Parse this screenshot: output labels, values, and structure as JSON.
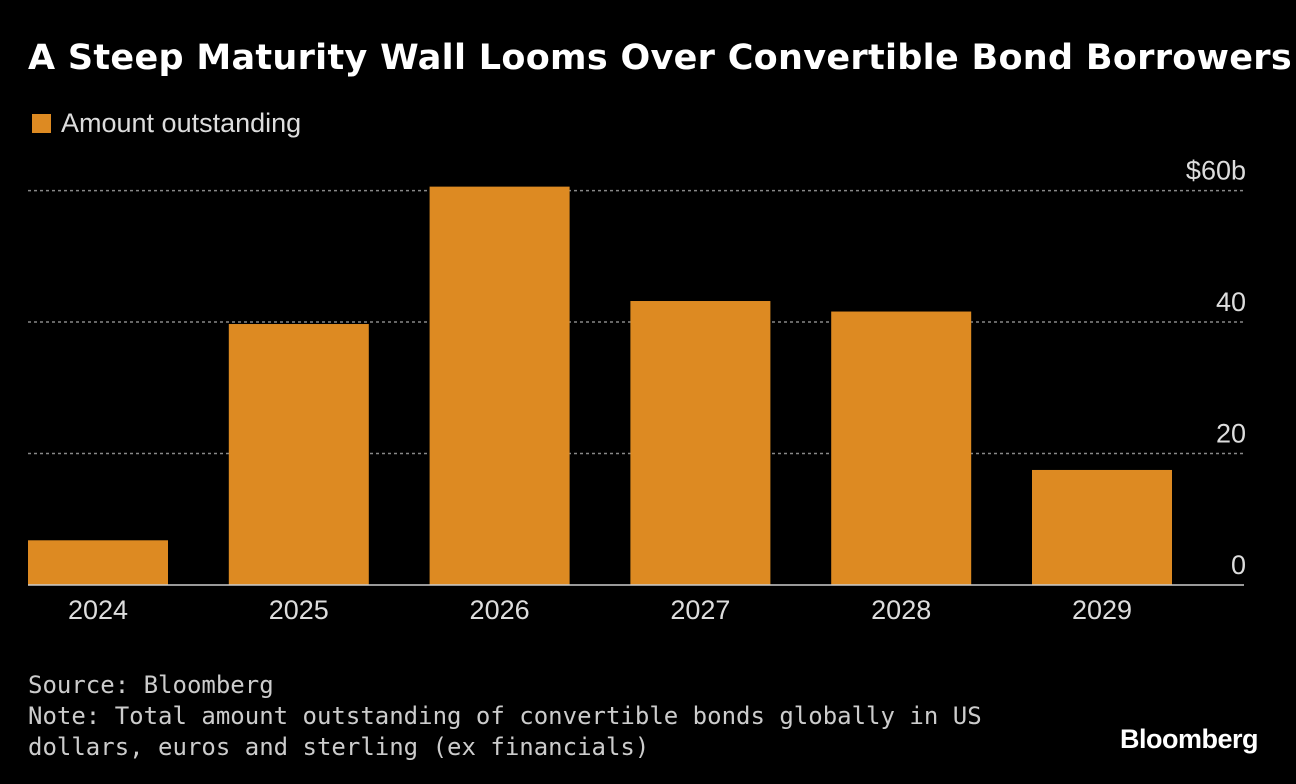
{
  "chart_data": {
    "type": "bar",
    "title": "A Steep Maturity Wall Looms Over Convertible Bond Borrowers",
    "categories": [
      "2024",
      "2025",
      "2026",
      "2027",
      "2028",
      "2029"
    ],
    "series": [
      {
        "name": "Amount outstanding",
        "color": "#dd8a22",
        "values": [
          6.8,
          39.7,
          60.6,
          43.2,
          41.6,
          17.5
        ]
      }
    ],
    "ylim": [
      0,
      61
    ],
    "yticks": [
      0,
      20,
      40,
      {
        "value": 60,
        "label": "$60b"
      }
    ],
    "grid": true,
    "source": "Source: Bloomberg",
    "note": "Note: Total amount outstanding of convertible bonds globally in US dollars, euros and sterling (ex financials)",
    "brand": "Bloomberg"
  }
}
